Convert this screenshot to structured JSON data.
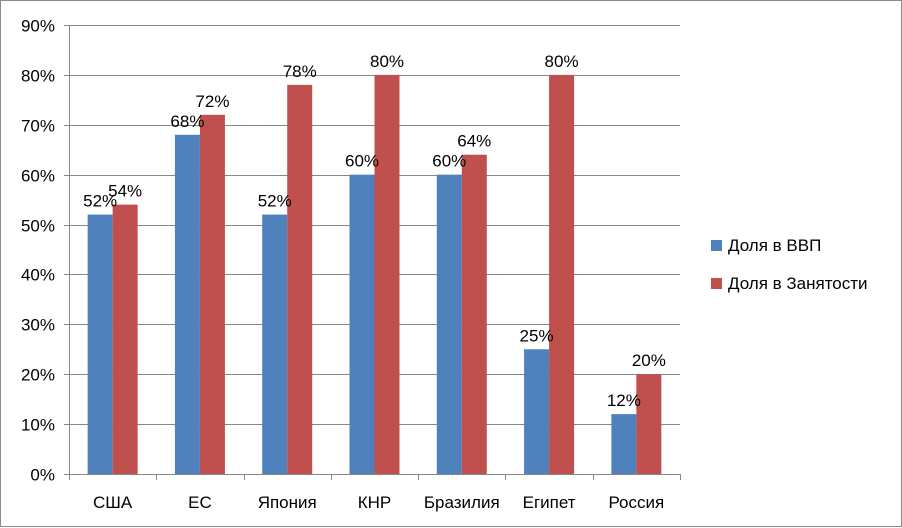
{
  "chart_data": {
    "type": "bar",
    "categories": [
      "США",
      "ЕС",
      "Япония",
      "КНР",
      "Бразилия",
      "Египет",
      "Россия"
    ],
    "series": [
      {
        "name": "Доля в ВВП",
        "values": [
          52,
          68,
          52,
          60,
          60,
          25,
          12
        ],
        "color": "#4F81BD"
      },
      {
        "name": "Доля в Занятости",
        "values": [
          54,
          72,
          78,
          80,
          64,
          80,
          20
        ],
        "color": "#C0504D"
      }
    ],
    "data_labels": [
      [
        "52%",
        "68%",
        "52%",
        "60%",
        "60%",
        "25%",
        "12%"
      ],
      [
        "54%",
        "72%",
        "78%",
        "80%",
        "64%",
        "80%",
        "20%"
      ]
    ],
    "y_ticks": [
      "0%",
      "10%",
      "20%",
      "30%",
      "40%",
      "50%",
      "60%",
      "70%",
      "80%",
      "90%"
    ],
    "ylim": [
      0,
      90
    ],
    "grid": true,
    "legend_position": "right"
  }
}
